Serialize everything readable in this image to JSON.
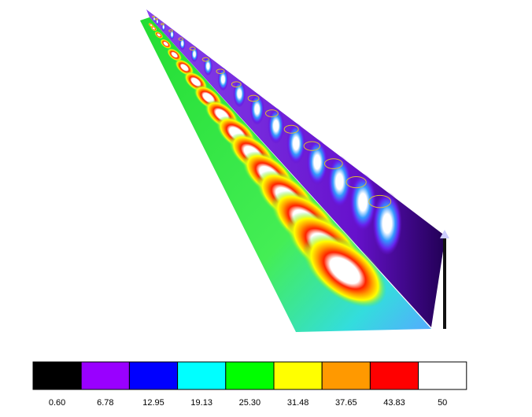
{
  "legend": {
    "items": [
      {
        "label": "0.60",
        "color": "#000000"
      },
      {
        "label": "6.78",
        "color": "#9900ff"
      },
      {
        "label": "12.95",
        "color": "#0000ff"
      },
      {
        "label": "19.13",
        "color": "#00ffff"
      },
      {
        "label": "25.30",
        "color": "#00ff00"
      },
      {
        "label": "31.48",
        "color": "#ffff00"
      },
      {
        "label": "37.65",
        "color": "#ff9900"
      },
      {
        "label": "43.83",
        "color": "#ff0000"
      },
      {
        "label": "50",
        "color": "#ffffff"
      }
    ]
  }
}
